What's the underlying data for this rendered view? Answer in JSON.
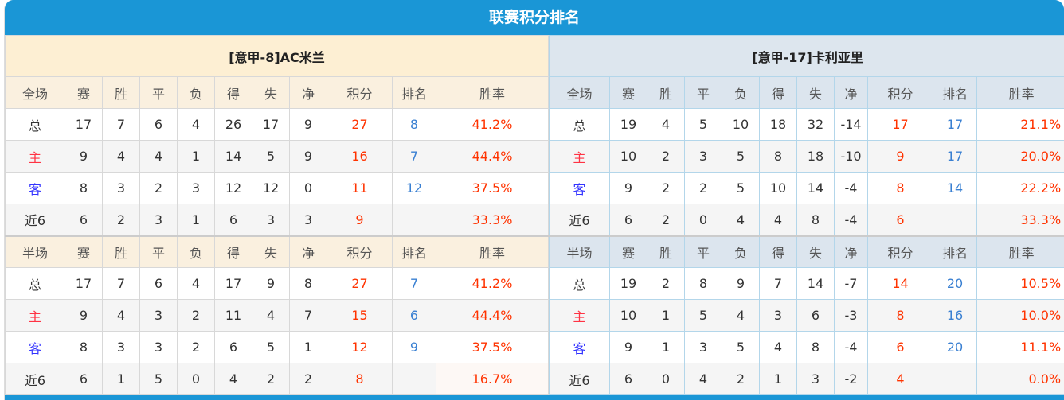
{
  "title": "联赛积分排名",
  "colors": {
    "header": "#1a96d6",
    "points": "#ff3300",
    "rank": "#3a80d2",
    "home": "#ff3344",
    "away": "#3333ff"
  },
  "columns": [
    "赛",
    "胜",
    "平",
    "负",
    "得",
    "失",
    "净",
    "积分",
    "排名",
    "胜率"
  ],
  "teams": [
    {
      "name": "[意甲-8]AC米兰",
      "sections": [
        {
          "label": "全场",
          "rows": [
            {
              "label": "总",
              "values": [
                "17",
                "7",
                "6",
                "4",
                "26",
                "17",
                "9",
                "27",
                "8",
                "41.2%"
              ]
            },
            {
              "label": "主",
              "values": [
                "9",
                "4",
                "4",
                "1",
                "14",
                "5",
                "9",
                "16",
                "7",
                "44.4%"
              ]
            },
            {
              "label": "客",
              "values": [
                "8",
                "3",
                "2",
                "3",
                "12",
                "12",
                "0",
                "11",
                "12",
                "37.5%"
              ]
            },
            {
              "label": "近6",
              "values": [
                "6",
                "2",
                "3",
                "1",
                "6",
                "3",
                "3",
                "9",
                "",
                "33.3%"
              ]
            }
          ]
        },
        {
          "label": "半场",
          "rows": [
            {
              "label": "总",
              "values": [
                "17",
                "7",
                "6",
                "4",
                "17",
                "9",
                "8",
                "27",
                "7",
                "41.2%"
              ]
            },
            {
              "label": "主",
              "values": [
                "9",
                "4",
                "3",
                "2",
                "11",
                "4",
                "7",
                "15",
                "6",
                "44.4%"
              ]
            },
            {
              "label": "客",
              "values": [
                "8",
                "3",
                "3",
                "2",
                "6",
                "5",
                "1",
                "12",
                "9",
                "37.5%"
              ]
            },
            {
              "label": "近6",
              "values": [
                "6",
                "1",
                "5",
                "0",
                "4",
                "2",
                "2",
                "8",
                "",
                "16.7%"
              ]
            }
          ]
        }
      ]
    },
    {
      "name": "[意甲-17]卡利亚里",
      "sections": [
        {
          "label": "全场",
          "rows": [
            {
              "label": "总",
              "values": [
                "19",
                "4",
                "5",
                "10",
                "18",
                "32",
                "-14",
                "17",
                "17",
                "21.1%"
              ]
            },
            {
              "label": "主",
              "values": [
                "10",
                "2",
                "3",
                "5",
                "8",
                "18",
                "-10",
                "9",
                "17",
                "20.0%"
              ]
            },
            {
              "label": "客",
              "values": [
                "9",
                "2",
                "2",
                "5",
                "10",
                "14",
                "-4",
                "8",
                "14",
                "22.2%"
              ]
            },
            {
              "label": "近6",
              "values": [
                "6",
                "2",
                "0",
                "4",
                "4",
                "8",
                "-4",
                "6",
                "",
                "33.3%"
              ]
            }
          ]
        },
        {
          "label": "半场",
          "rows": [
            {
              "label": "总",
              "values": [
                "19",
                "2",
                "8",
                "9",
                "7",
                "14",
                "-7",
                "14",
                "20",
                "10.5%"
              ]
            },
            {
              "label": "主",
              "values": [
                "10",
                "1",
                "5",
                "4",
                "3",
                "6",
                "-3",
                "8",
                "16",
                "10.0%"
              ]
            },
            {
              "label": "客",
              "values": [
                "9",
                "1",
                "3",
                "5",
                "4",
                "8",
                "-4",
                "6",
                "20",
                "11.1%"
              ]
            },
            {
              "label": "近6",
              "values": [
                "6",
                "0",
                "4",
                "2",
                "1",
                "3",
                "-2",
                "4",
                "",
                "0.0%"
              ]
            }
          ]
        }
      ]
    }
  ]
}
